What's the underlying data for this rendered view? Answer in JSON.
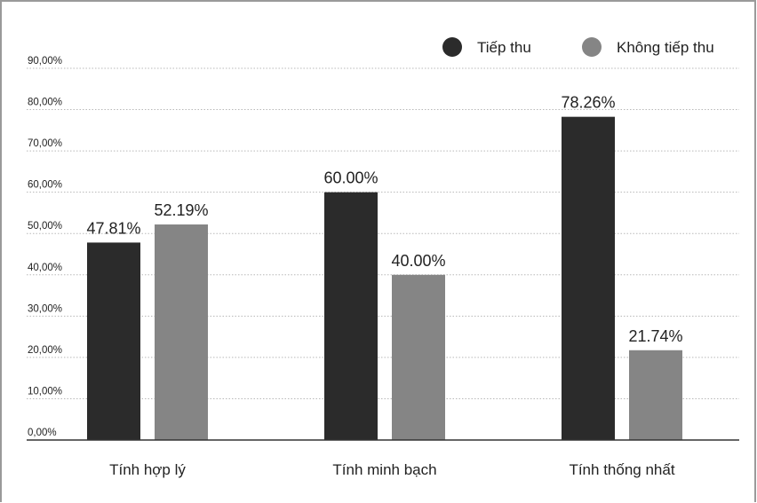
{
  "chart_data": {
    "type": "bar",
    "categories": [
      "Tính hợp lý",
      "Tính minh bạch",
      "Tính thống nhất"
    ],
    "series": [
      {
        "name": "Tiếp thu",
        "values": [
          47.81,
          60.0,
          78.26
        ],
        "labels": [
          "47.81%",
          "60.00%",
          "78.26%"
        ],
        "color": "#2b2b2b"
      },
      {
        "name": "Không tiếp thu",
        "values": [
          52.19,
          40.0,
          21.74
        ],
        "labels": [
          "52.19%",
          "40.00%",
          "21.74%"
        ],
        "color": "#858585"
      }
    ],
    "y_ticks": [
      "0,00%",
      "10,00%",
      "20,00%",
      "30,00%",
      "40,00%",
      "50,00%",
      "60,00%",
      "70,00%",
      "80,00%",
      "90,00%"
    ],
    "ylim": [
      0,
      90
    ],
    "grid": true,
    "legend_position": "top-right"
  }
}
